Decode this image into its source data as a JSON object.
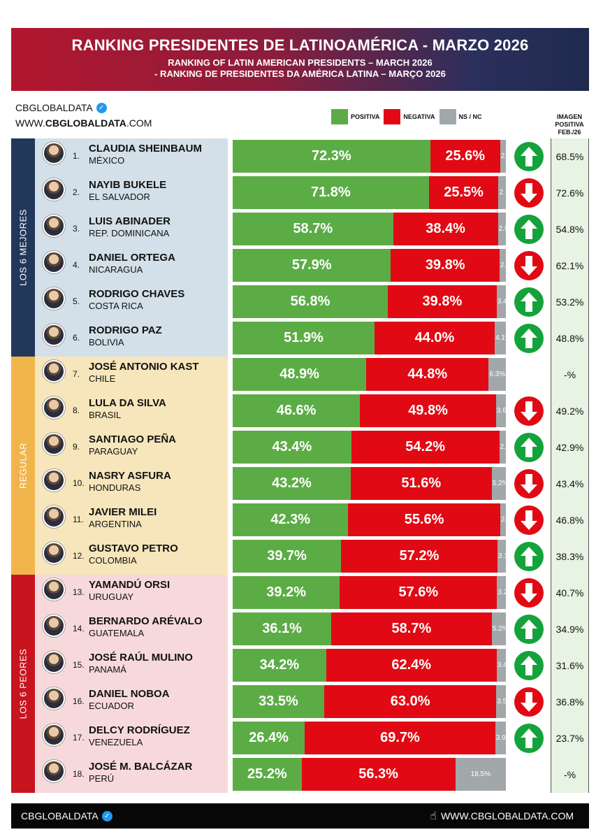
{
  "header": {
    "title": "RANKING PRESIDENTES DE LATINOAMÉRICA - MARZO 2026",
    "subtitle_en": "RANKING OF LATIN AMERICAN PRESIDENTS – MARCH 2026",
    "subtitle_pt": "-  RANKING DE PRESIDENTES DA AMÉRICA LATINA – MARÇO 2026"
  },
  "brand": {
    "name": "CBGLOBALDATA",
    "site_prefix": "WWW.",
    "site_main": "CBGLOBALDATA",
    "site_suffix": ".COM"
  },
  "legend": {
    "positive": "POSITIVA",
    "negative": "NEGATIVA",
    "ns": "NS / NC"
  },
  "image_column_header": [
    "IMAGEN",
    "POSITIVA",
    "FEB./26"
  ],
  "sections": [
    {
      "label": "LOS 6 MEJORES",
      "color": "#22385a",
      "bg": "#d3e0e9",
      "start": 0,
      "count": 6
    },
    {
      "label": "REGULAR",
      "color": "#f0b54a",
      "bg": "#f7e6bb",
      "start": 6,
      "count": 6
    },
    {
      "label": "LOS 6 PEORES",
      "color": "#c7141f",
      "bg": "#f7d9dc",
      "start": 12,
      "count": 6
    }
  ],
  "colors": {
    "positive": "#5cac46",
    "negative": "#e10a14",
    "ns": "#a2a7aa",
    "up": "#14a33a",
    "down": "#e10a14"
  },
  "chart_data": {
    "type": "bar",
    "stacked": true,
    "orientation": "horizontal",
    "series_names": [
      "POSITIVA",
      "NEGATIVA",
      "NS / NC"
    ],
    "rows": [
      {
        "rank": "1.",
        "name": "CLAUDIA SHEINBAUM",
        "country": "MÉXICO",
        "pos": 72.3,
        "neg": 25.6,
        "ns": 2.1,
        "pos_label": "72.3%",
        "neg_label": "25.6%",
        "ns_label": "2.1%",
        "trend": "up",
        "prev": "68.5%"
      },
      {
        "rank": "2.",
        "name": "NAYIB BUKELE",
        "country": "EL SALVADOR",
        "pos": 71.8,
        "neg": 25.5,
        "ns": 2.7,
        "pos_label": "71.8%",
        "neg_label": "25.5%",
        "ns_label": "2.7%",
        "trend": "down",
        "prev": "72.6%"
      },
      {
        "rank": "3.",
        "name": "LUIS ABINADER",
        "country": "REP. DOMINICANA",
        "pos": 58.7,
        "neg": 38.4,
        "ns": 2.9,
        "pos_label": "58.7%",
        "neg_label": "38.4%",
        "ns_label": "2.9%",
        "trend": "up",
        "prev": "54.8%"
      },
      {
        "rank": "4.",
        "name": "DANIEL ORTEGA",
        "country": "NICARAGUA",
        "pos": 57.9,
        "neg": 39.8,
        "ns": 2.3,
        "pos_label": "57.9%",
        "neg_label": "39.8%",
        "ns_label": "2.3%",
        "trend": "down",
        "prev": "62.1%"
      },
      {
        "rank": "5.",
        "name": "RODRIGO CHAVES",
        "country": "COSTA RICA",
        "pos": 56.8,
        "neg": 39.8,
        "ns": 3.4,
        "pos_label": "56.8%",
        "neg_label": "39.8%",
        "ns_label": "3.4%",
        "trend": "up",
        "prev": "53.2%"
      },
      {
        "rank": "6.",
        "name": "RODRIGO PAZ",
        "country": "BOLIVIA",
        "pos": 51.9,
        "neg": 44.0,
        "ns": 4.1,
        "pos_label": "51.9%",
        "neg_label": "44.0%",
        "ns_label": "4.1%",
        "trend": "up",
        "prev": "48.8%"
      },
      {
        "rank": "7.",
        "name": "JOSÉ ANTONIO KAST",
        "country": "CHILE",
        "pos": 48.9,
        "neg": 44.8,
        "ns": 6.3,
        "pos_label": "48.9%",
        "neg_label": "44.8%",
        "ns_label": "6.3%",
        "trend": "none",
        "prev": "-%"
      },
      {
        "rank": "8.",
        "name": "LULA DA SILVA",
        "country": "BRASIL",
        "pos": 46.6,
        "neg": 49.8,
        "ns": 3.6,
        "pos_label": "46.6%",
        "neg_label": "49.8%",
        "ns_label": "3.6%",
        "trend": "down",
        "prev": "49.2%"
      },
      {
        "rank": "9.",
        "name": "SANTIAGO PEÑA",
        "country": "PARAGUAY",
        "pos": 43.4,
        "neg": 54.2,
        "ns": 2.4,
        "pos_label": "43.4%",
        "neg_label": "54.2%",
        "ns_label": "2.4%",
        "trend": "up",
        "prev": "42.9%"
      },
      {
        "rank": "10.",
        "name": "NASRY ASFURA",
        "country": "HONDURAS",
        "pos": 43.2,
        "neg": 51.6,
        "ns": 5.2,
        "pos_label": "43.2%",
        "neg_label": "51.6%",
        "ns_label": "5.2%",
        "trend": "down",
        "prev": "43.4%"
      },
      {
        "rank": "11.",
        "name": "JAVIER MILEI",
        "country": "ARGENTINA",
        "pos": 42.3,
        "neg": 55.6,
        "ns": 2.1,
        "pos_label": "42.3%",
        "neg_label": "55.6%",
        "ns_label": "2.1%",
        "trend": "down",
        "prev": "46.8%"
      },
      {
        "rank": "12.",
        "name": "GUSTAVO PETRO",
        "country": "COLOMBIA",
        "pos": 39.7,
        "neg": 57.2,
        "ns": 3.1,
        "pos_label": "39.7%",
        "neg_label": "57.2%",
        "ns_label": "3.1%",
        "trend": "up",
        "prev": "38.3%"
      },
      {
        "rank": "13.",
        "name": "YAMANDÚ ORSI",
        "country": "URUGUAY",
        "pos": 39.2,
        "neg": 57.6,
        "ns": 3.2,
        "pos_label": "39.2%",
        "neg_label": "57.6%",
        "ns_label": "3.2%",
        "trend": "down",
        "prev": "40.7%"
      },
      {
        "rank": "14.",
        "name": "BERNARDO ARÉVALO",
        "country": "GUATEMALA",
        "pos": 36.1,
        "neg": 58.7,
        "ns": 5.2,
        "pos_label": "36.1%",
        "neg_label": "58.7%",
        "ns_label": "5.2%",
        "trend": "up",
        "prev": "34.9%"
      },
      {
        "rank": "15.",
        "name": "JOSÉ RAÚL MULINO",
        "country": "PANAMÁ",
        "pos": 34.2,
        "neg": 62.4,
        "ns": 3.4,
        "pos_label": "34.2%",
        "neg_label": "62.4%",
        "ns_label": "3.4%",
        "trend": "up",
        "prev": "31.6%"
      },
      {
        "rank": "16.",
        "name": "DANIEL NOBOA",
        "country": "ECUADOR",
        "pos": 33.5,
        "neg": 63.0,
        "ns": 3.5,
        "pos_label": "33.5%",
        "neg_label": "63.0%",
        "ns_label": "3.5%",
        "trend": "down",
        "prev": "36.8%"
      },
      {
        "rank": "17.",
        "name": "DELCY RODRÍGUEZ",
        "country": "VENEZUELA",
        "pos": 26.4,
        "neg": 69.7,
        "ns": 3.9,
        "pos_label": "26.4%",
        "neg_label": "69.7%",
        "ns_label": "3.9%",
        "trend": "up",
        "prev": "23.7%"
      },
      {
        "rank": "18.",
        "name": "JOSÉ M. BALCÁZAR",
        "country": "PERÚ",
        "pos": 25.2,
        "neg": 56.3,
        "ns": 18.5,
        "pos_label": "25.2%",
        "neg_label": "56.3%",
        "ns_label": "18.5%",
        "trend": "none",
        "prev": "-%"
      }
    ]
  },
  "footer": {
    "brand": "CBGLOBALDATA",
    "site": "WWW.CBGLOBALDATA.COM"
  }
}
